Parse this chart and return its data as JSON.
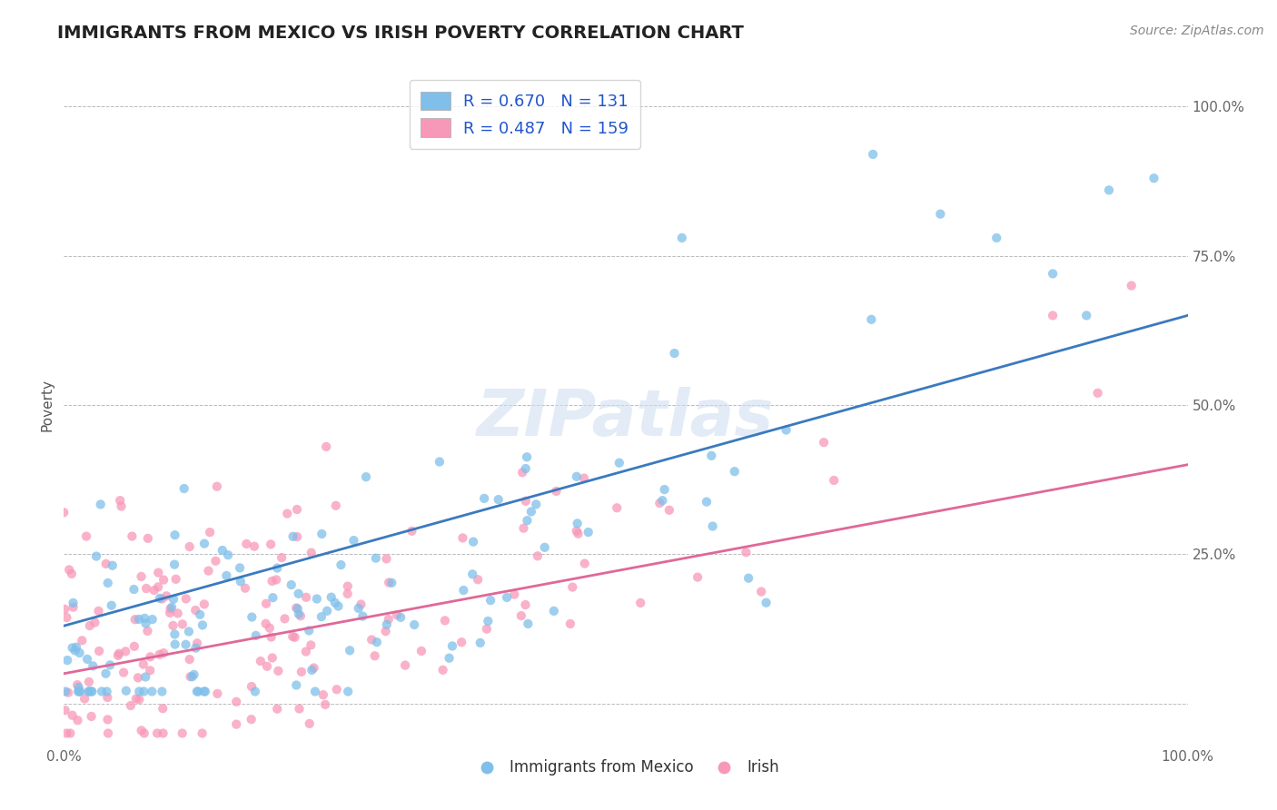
{
  "title": "IMMIGRANTS FROM MEXICO VS IRISH POVERTY CORRELATION CHART",
  "source": "Source: ZipAtlas.com",
  "ylabel": "Poverty",
  "watermark": "ZIPatlas",
  "blue_label": "R = 0.670   N = 131",
  "pink_label": "R = 0.487   N = 159",
  "legend_bottom_blue": "Immigrants from Mexico",
  "legend_bottom_pink": "Irish",
  "blue_color": "#7fbfea",
  "pink_color": "#f898b8",
  "blue_line_color": "#3a7abf",
  "pink_line_color": "#e06898",
  "background_color": "#ffffff",
  "grid_color": "#bbbbbb",
  "title_color": "#222222",
  "source_color": "#888888",
  "blue_R": 0.67,
  "blue_N": 131,
  "pink_R": 0.487,
  "pink_N": 159,
  "seed": 7,
  "title_fontsize": 14,
  "source_fontsize": 10,
  "tick_fontsize": 11,
  "ylabel_fontsize": 11
}
